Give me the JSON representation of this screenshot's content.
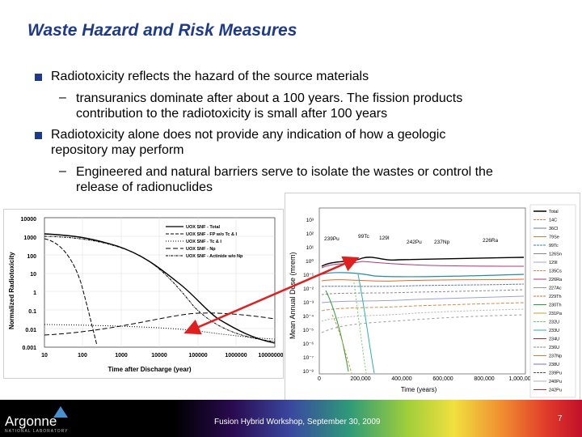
{
  "slide": {
    "title": "Waste Hazard and Risk Measures",
    "bullets": [
      {
        "text": "Radiotoxicity reflects the hazard of the source materials",
        "sub": [
          "transuranics dominate after about a 100 years. The fission products",
          "contribution to the radiotoxicity is small after 100 years"
        ]
      },
      {
        "text": "Radiotoxicity alone does not provide any indication of how a geologic",
        "text2": "repository may perform",
        "sub": [
          "Engineered and natural barriers serve to isolate the wastes or control the",
          "release of radionuclides"
        ]
      }
    ],
    "dash": "–"
  },
  "left_chart": {
    "ylabel": "Normalized Radiotoxicity",
    "xlabel": "Time after Discharge (year)",
    "yticks": [
      "10000",
      "1000",
      "100",
      "10",
      "1",
      "0.1",
      "0.01",
      "0.001"
    ],
    "xticks": [
      "10",
      "100",
      "1000",
      "10000",
      "100000",
      "1000000",
      "10000000"
    ],
    "legend": [
      "UOX SNF - Total",
      "UOX SNF - FP w/o Tc & I",
      "UOX SNF - Tc & I",
      "UOX SNF - Np",
      "UOX SNF - Actinide w/o Np"
    ]
  },
  "right_chart": {
    "ylabel": "Mean Annual Dose (mrem)",
    "xlabel": "Time (years)",
    "yticks": [
      "10³",
      "10²",
      "10¹",
      "10⁰",
      "10⁻¹",
      "10⁻²",
      "10⁻³",
      "10⁻⁴",
      "10⁻⁵",
      "10⁻⁶",
      "10⁻⁷",
      "10⁻⁸"
    ],
    "xticks": [
      "0",
      "200,000",
      "400,000",
      "600,000",
      "800,000",
      "1,000,000"
    ],
    "annotations": [
      "239Pu",
      "99Tc",
      "129I",
      "242Pu",
      "237Np",
      "226Ra"
    ],
    "legend": [
      "Total",
      "14C",
      "36Cl",
      "79Se",
      "99Tc",
      "126Sn",
      "129I",
      "135Cs",
      "226Ra",
      "227Ac",
      "229Th",
      "230Th",
      "231Pa",
      "232U",
      "233U",
      "234U",
      "236U",
      "237Np",
      "238U",
      "239Pu",
      "240Pu",
      "242Pu"
    ]
  },
  "footer": {
    "logo": "Argonne",
    "logo_sub": "NATIONAL LABORATORY",
    "center": "Fusion Hybrid Workshop, September 30, 2009",
    "page": "7"
  },
  "colors": {
    "title": "#1f3a8a",
    "bullet": "#1f3a8a",
    "arrow": "#e02020"
  }
}
